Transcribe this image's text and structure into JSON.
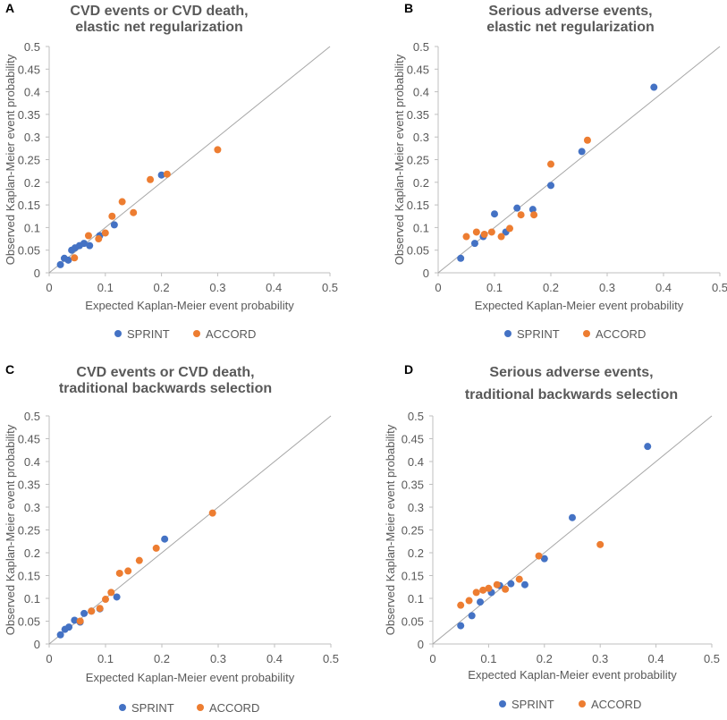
{
  "colors": {
    "sprint": "#4472C4",
    "accord": "#ED7D31",
    "axis": "#BFBFBF",
    "diagonal": "#A6A6A6"
  },
  "chart_data": [
    {
      "panel": "A",
      "type": "scatter",
      "title_lines": [
        "CVD events or CVD death,",
        "elastic net regularization"
      ],
      "xlabel": "Expected Kaplan-Meier event probability",
      "ylabel": "Observed Kaplan-Meier event probability",
      "xlim": [
        0,
        0.5
      ],
      "ylim": [
        0,
        0.5
      ],
      "xticks": [
        "0",
        "0.1",
        "0.2",
        "0.3",
        "0.4",
        "0.5"
      ],
      "yticks": [
        "0",
        "0.05",
        "0.1",
        "0.15",
        "0.2",
        "0.25",
        "0.3",
        "0.35",
        "0.4",
        "0.45",
        "0.5"
      ],
      "reference_line": "y = x",
      "legend": [
        "SPRINT",
        "ACCORD"
      ],
      "series": [
        {
          "name": "SPRINT",
          "color": "#4472C4",
          "points": [
            [
              0.02,
              0.018
            ],
            [
              0.027,
              0.032
            ],
            [
              0.034,
              0.028
            ],
            [
              0.04,
              0.05
            ],
            [
              0.046,
              0.055
            ],
            [
              0.054,
              0.06
            ],
            [
              0.062,
              0.065
            ],
            [
              0.072,
              0.06
            ],
            [
              0.09,
              0.082
            ],
            [
              0.116,
              0.106
            ],
            [
              0.2,
              0.216
            ]
          ]
        },
        {
          "name": "ACCORD",
          "color": "#ED7D31",
          "points": [
            [
              0.045,
              0.033
            ],
            [
              0.07,
              0.082
            ],
            [
              0.088,
              0.075
            ],
            [
              0.1,
              0.088
            ],
            [
              0.112,
              0.125
            ],
            [
              0.13,
              0.157
            ],
            [
              0.15,
              0.133
            ],
            [
              0.18,
              0.206
            ],
            [
              0.21,
              0.218
            ],
            [
              0.3,
              0.272
            ]
          ]
        }
      ]
    },
    {
      "panel": "B",
      "type": "scatter",
      "title_lines": [
        "Serious adverse events,",
        "elastic net regularization"
      ],
      "xlabel": "Expected Kaplan-Meier event probability",
      "ylabel": "Observed Kaplan-Meier event probability",
      "xlim": [
        0,
        0.5
      ],
      "ylim": [
        0,
        0.5
      ],
      "xticks": [
        "0",
        "0.1",
        "0.2",
        "0.3",
        "0.4",
        "0.5"
      ],
      "yticks": [
        "0",
        "0.05",
        "0.1",
        "0.15",
        "0.2",
        "0.25",
        "0.3",
        "0.35",
        "0.4",
        "0.45",
        "0.5"
      ],
      "reference_line": "y = x",
      "legend": [
        "SPRINT",
        "ACCORD"
      ],
      "series": [
        {
          "name": "SPRINT",
          "color": "#4472C4",
          "points": [
            [
              0.04,
              0.032
            ],
            [
              0.065,
              0.065
            ],
            [
              0.08,
              0.08
            ],
            [
              0.1,
              0.13
            ],
            [
              0.12,
              0.09
            ],
            [
              0.14,
              0.143
            ],
            [
              0.168,
              0.14
            ],
            [
              0.2,
              0.193
            ],
            [
              0.255,
              0.268
            ],
            [
              0.383,
              0.41
            ]
          ]
        },
        {
          "name": "ACCORD",
          "color": "#ED7D31",
          "points": [
            [
              0.05,
              0.08
            ],
            [
              0.068,
              0.09
            ],
            [
              0.082,
              0.085
            ],
            [
              0.095,
              0.09
            ],
            [
              0.112,
              0.08
            ],
            [
              0.127,
              0.098
            ],
            [
              0.147,
              0.128
            ],
            [
              0.17,
              0.128
            ],
            [
              0.2,
              0.24
            ],
            [
              0.265,
              0.293
            ]
          ]
        }
      ]
    },
    {
      "panel": "C",
      "type": "scatter",
      "title_lines": [
        "CVD events or CVD death,",
        "traditional backwards selection"
      ],
      "xlabel": "Expected Kaplan-Meier event probability",
      "ylabel": "Observed Kaplan-Meier event probability",
      "xlim": [
        0,
        0.5
      ],
      "ylim": [
        0,
        0.5
      ],
      "xticks": [
        "0",
        "0.1",
        "0.2",
        "0.3",
        "0.4",
        "0.5"
      ],
      "yticks": [
        "0",
        "0.05",
        "0.1",
        "0.15",
        "0.2",
        "0.25",
        "0.3",
        "0.35",
        "0.4",
        "0.45",
        "0.5"
      ],
      "reference_line": "y = x",
      "legend": [
        "SPRINT",
        "ACCORD"
      ],
      "series": [
        {
          "name": "SPRINT",
          "color": "#4472C4",
          "points": [
            [
              0.02,
              0.02
            ],
            [
              0.028,
              0.032
            ],
            [
              0.035,
              0.037
            ],
            [
              0.045,
              0.052
            ],
            [
              0.055,
              0.048
            ],
            [
              0.062,
              0.067
            ],
            [
              0.075,
              0.072
            ],
            [
              0.09,
              0.077
            ],
            [
              0.12,
              0.103
            ],
            [
              0.205,
              0.23
            ]
          ]
        },
        {
          "name": "ACCORD",
          "color": "#ED7D31",
          "points": [
            [
              0.055,
              0.05
            ],
            [
              0.075,
              0.072
            ],
            [
              0.09,
              0.078
            ],
            [
              0.1,
              0.098
            ],
            [
              0.11,
              0.113
            ],
            [
              0.125,
              0.155
            ],
            [
              0.14,
              0.16
            ],
            [
              0.16,
              0.183
            ],
            [
              0.19,
              0.21
            ],
            [
              0.29,
              0.287
            ]
          ]
        }
      ]
    },
    {
      "panel": "D",
      "type": "scatter",
      "title_lines": [
        "Serious adverse events,",
        "traditional backwards selection"
      ],
      "xlabel": "Expected Kaplan-Meier event probability",
      "ylabel": "Observed Kaplan-Meier event probability",
      "xlim": [
        0,
        0.5
      ],
      "ylim": [
        0,
        0.5
      ],
      "xticks": [
        "0",
        "0.1",
        "0.2",
        "0.3",
        "0.4",
        "0.5"
      ],
      "yticks": [
        "0",
        "0.05",
        "0.1",
        "0.15",
        "0.2",
        "0.25",
        "0.3",
        "0.35",
        "0.4",
        "0.45",
        "0.5"
      ],
      "reference_line": "y = x",
      "legend": [
        "SPRINT",
        "ACCORD"
      ],
      "series": [
        {
          "name": "SPRINT",
          "color": "#4472C4",
          "points": [
            [
              0.05,
              0.04
            ],
            [
              0.07,
              0.062
            ],
            [
              0.085,
              0.092
            ],
            [
              0.105,
              0.113
            ],
            [
              0.12,
              0.128
            ],
            [
              0.14,
              0.132
            ],
            [
              0.165,
              0.13
            ],
            [
              0.2,
              0.187
            ],
            [
              0.25,
              0.277
            ],
            [
              0.385,
              0.433
            ]
          ]
        },
        {
          "name": "ACCORD",
          "color": "#ED7D31",
          "points": [
            [
              0.05,
              0.085
            ],
            [
              0.065,
              0.095
            ],
            [
              0.078,
              0.113
            ],
            [
              0.09,
              0.118
            ],
            [
              0.1,
              0.122
            ],
            [
              0.115,
              0.13
            ],
            [
              0.13,
              0.12
            ],
            [
              0.155,
              0.142
            ],
            [
              0.19,
              0.193
            ],
            [
              0.3,
              0.218
            ]
          ]
        }
      ]
    }
  ]
}
